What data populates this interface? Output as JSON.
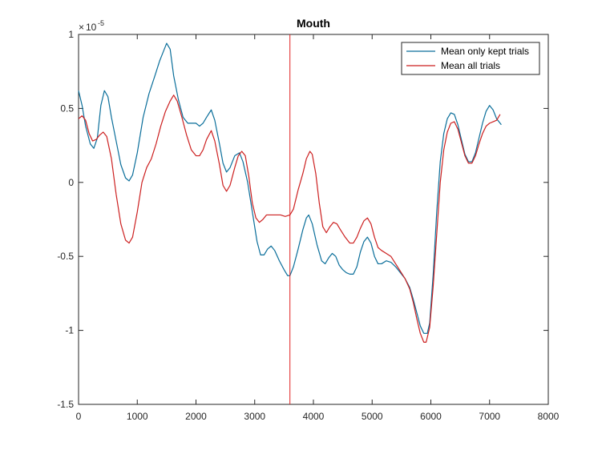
{
  "chart_data": {
    "type": "line",
    "title": "Mouth",
    "xlabel": "",
    "ylabel": "",
    "xlim": [
      0,
      8000
    ],
    "ylim": [
      -1.5,
      1
    ],
    "y_exponent_label": "10",
    "y_exponent_power": "-5",
    "y_scale_note": "values shown ×10^-5",
    "xticks": [
      0,
      1000,
      2000,
      3000,
      4000,
      5000,
      6000,
      7000,
      8000
    ],
    "xtick_labels": [
      "0",
      "1000",
      "2000",
      "3000",
      "4000",
      "5000",
      "6000",
      "7000",
      "8000"
    ],
    "yticks": [
      -1.5,
      -1,
      -0.5,
      0,
      0.5,
      1
    ],
    "ytick_labels": [
      "-1.5",
      "-1",
      "-0.5",
      "0",
      "0.5",
      "1"
    ],
    "grid": false,
    "legend_position": "top-right",
    "vertical_line": {
      "x": 3600,
      "color": "#e02020"
    },
    "series": [
      {
        "name": "Mean only kept trials",
        "color": "#0a6e9a",
        "points": [
          [
            0,
            0.62
          ],
          [
            60,
            0.52
          ],
          [
            120,
            0.38
          ],
          [
            200,
            0.26
          ],
          [
            260,
            0.23
          ],
          [
            320,
            0.3
          ],
          [
            380,
            0.52
          ],
          [
            440,
            0.62
          ],
          [
            500,
            0.58
          ],
          [
            560,
            0.44
          ],
          [
            640,
            0.28
          ],
          [
            720,
            0.12
          ],
          [
            800,
            0.03
          ],
          [
            860,
            0.01
          ],
          [
            920,
            0.05
          ],
          [
            1000,
            0.2
          ],
          [
            1100,
            0.44
          ],
          [
            1200,
            0.6
          ],
          [
            1300,
            0.72
          ],
          [
            1380,
            0.82
          ],
          [
            1440,
            0.88
          ],
          [
            1500,
            0.94
          ],
          [
            1560,
            0.9
          ],
          [
            1620,
            0.72
          ],
          [
            1700,
            0.56
          ],
          [
            1780,
            0.44
          ],
          [
            1860,
            0.4
          ],
          [
            1940,
            0.4
          ],
          [
            2000,
            0.4
          ],
          [
            2060,
            0.38
          ],
          [
            2120,
            0.4
          ],
          [
            2180,
            0.44
          ],
          [
            2260,
            0.49
          ],
          [
            2320,
            0.42
          ],
          [
            2400,
            0.26
          ],
          [
            2460,
            0.13
          ],
          [
            2520,
            0.07
          ],
          [
            2580,
            0.1
          ],
          [
            2660,
            0.18
          ],
          [
            2740,
            0.2
          ],
          [
            2800,
            0.14
          ],
          [
            2880,
            0.0
          ],
          [
            2960,
            -0.2
          ],
          [
            3040,
            -0.4
          ],
          [
            3100,
            -0.49
          ],
          [
            3160,
            -0.49
          ],
          [
            3220,
            -0.45
          ],
          [
            3280,
            -0.43
          ],
          [
            3340,
            -0.46
          ],
          [
            3420,
            -0.53
          ],
          [
            3500,
            -0.59
          ],
          [
            3560,
            -0.63
          ],
          [
            3600,
            -0.63
          ],
          [
            3660,
            -0.57
          ],
          [
            3740,
            -0.45
          ],
          [
            3820,
            -0.32
          ],
          [
            3880,
            -0.24
          ],
          [
            3920,
            -0.22
          ],
          [
            3980,
            -0.28
          ],
          [
            4060,
            -0.42
          ],
          [
            4140,
            -0.53
          ],
          [
            4200,
            -0.55
          ],
          [
            4260,
            -0.51
          ],
          [
            4320,
            -0.48
          ],
          [
            4380,
            -0.5
          ],
          [
            4440,
            -0.56
          ],
          [
            4500,
            -0.59
          ],
          [
            4560,
            -0.61
          ],
          [
            4620,
            -0.62
          ],
          [
            4680,
            -0.62
          ],
          [
            4740,
            -0.57
          ],
          [
            4800,
            -0.47
          ],
          [
            4860,
            -0.4
          ],
          [
            4920,
            -0.37
          ],
          [
            4980,
            -0.41
          ],
          [
            5040,
            -0.5
          ],
          [
            5100,
            -0.55
          ],
          [
            5160,
            -0.55
          ],
          [
            5240,
            -0.53
          ],
          [
            5320,
            -0.54
          ],
          [
            5400,
            -0.57
          ],
          [
            5480,
            -0.61
          ],
          [
            5560,
            -0.65
          ],
          [
            5640,
            -0.71
          ],
          [
            5700,
            -0.79
          ],
          [
            5760,
            -0.88
          ],
          [
            5820,
            -0.97
          ],
          [
            5880,
            -1.02
          ],
          [
            5940,
            -1.02
          ],
          [
            5980,
            -0.95
          ],
          [
            6040,
            -0.62
          ],
          [
            6100,
            -0.2
          ],
          [
            6160,
            0.14
          ],
          [
            6220,
            0.33
          ],
          [
            6280,
            0.43
          ],
          [
            6340,
            0.47
          ],
          [
            6400,
            0.46
          ],
          [
            6460,
            0.39
          ],
          [
            6520,
            0.29
          ],
          [
            6580,
            0.19
          ],
          [
            6640,
            0.14
          ],
          [
            6700,
            0.14
          ],
          [
            6760,
            0.2
          ],
          [
            6820,
            0.3
          ],
          [
            6880,
            0.4
          ],
          [
            6940,
            0.48
          ],
          [
            7000,
            0.52
          ],
          [
            7060,
            0.49
          ],
          [
            7120,
            0.43
          ],
          [
            7180,
            0.4
          ],
          [
            7200,
            0.39
          ]
        ]
      },
      {
        "name": "Mean all trials",
        "color": "#cc1f1f",
        "points": [
          [
            0,
            0.43
          ],
          [
            60,
            0.45
          ],
          [
            120,
            0.42
          ],
          [
            180,
            0.33
          ],
          [
            240,
            0.28
          ],
          [
            300,
            0.29
          ],
          [
            360,
            0.32
          ],
          [
            420,
            0.34
          ],
          [
            480,
            0.31
          ],
          [
            560,
            0.16
          ],
          [
            640,
            -0.08
          ],
          [
            720,
            -0.28
          ],
          [
            800,
            -0.39
          ],
          [
            860,
            -0.41
          ],
          [
            920,
            -0.37
          ],
          [
            1000,
            -0.2
          ],
          [
            1080,
            0.0
          ],
          [
            1160,
            0.1
          ],
          [
            1240,
            0.16
          ],
          [
            1320,
            0.26
          ],
          [
            1400,
            0.38
          ],
          [
            1480,
            0.48
          ],
          [
            1560,
            0.55
          ],
          [
            1620,
            0.59
          ],
          [
            1680,
            0.55
          ],
          [
            1760,
            0.44
          ],
          [
            1840,
            0.32
          ],
          [
            1920,
            0.22
          ],
          [
            2000,
            0.18
          ],
          [
            2060,
            0.18
          ],
          [
            2120,
            0.22
          ],
          [
            2180,
            0.29
          ],
          [
            2260,
            0.35
          ],
          [
            2320,
            0.28
          ],
          [
            2400,
            0.12
          ],
          [
            2460,
            -0.02
          ],
          [
            2520,
            -0.06
          ],
          [
            2580,
            -0.02
          ],
          [
            2660,
            0.1
          ],
          [
            2720,
            0.18
          ],
          [
            2780,
            0.21
          ],
          [
            2840,
            0.18
          ],
          [
            2900,
            0.04
          ],
          [
            2960,
            -0.14
          ],
          [
            3020,
            -0.24
          ],
          [
            3080,
            -0.27
          ],
          [
            3140,
            -0.25
          ],
          [
            3200,
            -0.22
          ],
          [
            3280,
            -0.22
          ],
          [
            3360,
            -0.22
          ],
          [
            3440,
            -0.22
          ],
          [
            3520,
            -0.23
          ],
          [
            3600,
            -0.22
          ],
          [
            3660,
            -0.18
          ],
          [
            3740,
            -0.05
          ],
          [
            3820,
            0.06
          ],
          [
            3880,
            0.16
          ],
          [
            3940,
            0.21
          ],
          [
            3980,
            0.19
          ],
          [
            4040,
            0.06
          ],
          [
            4100,
            -0.14
          ],
          [
            4160,
            -0.3
          ],
          [
            4220,
            -0.34
          ],
          [
            4280,
            -0.3
          ],
          [
            4340,
            -0.27
          ],
          [
            4400,
            -0.28
          ],
          [
            4460,
            -0.32
          ],
          [
            4540,
            -0.37
          ],
          [
            4620,
            -0.41
          ],
          [
            4680,
            -0.41
          ],
          [
            4740,
            -0.37
          ],
          [
            4800,
            -0.31
          ],
          [
            4860,
            -0.26
          ],
          [
            4920,
            -0.24
          ],
          [
            4980,
            -0.28
          ],
          [
            5040,
            -0.37
          ],
          [
            5100,
            -0.44
          ],
          [
            5160,
            -0.46
          ],
          [
            5240,
            -0.48
          ],
          [
            5320,
            -0.5
          ],
          [
            5400,
            -0.55
          ],
          [
            5480,
            -0.6
          ],
          [
            5560,
            -0.65
          ],
          [
            5640,
            -0.72
          ],
          [
            5700,
            -0.81
          ],
          [
            5760,
            -0.92
          ],
          [
            5820,
            -1.02
          ],
          [
            5880,
            -1.08
          ],
          [
            5920,
            -1.08
          ],
          [
            5980,
            -0.98
          ],
          [
            6040,
            -0.7
          ],
          [
            6100,
            -0.35
          ],
          [
            6160,
            0.0
          ],
          [
            6220,
            0.22
          ],
          [
            6280,
            0.34
          ],
          [
            6340,
            0.4
          ],
          [
            6400,
            0.41
          ],
          [
            6460,
            0.36
          ],
          [
            6520,
            0.27
          ],
          [
            6580,
            0.18
          ],
          [
            6640,
            0.13
          ],
          [
            6700,
            0.13
          ],
          [
            6760,
            0.18
          ],
          [
            6820,
            0.26
          ],
          [
            6880,
            0.33
          ],
          [
            6940,
            0.38
          ],
          [
            7000,
            0.4
          ],
          [
            7060,
            0.41
          ],
          [
            7120,
            0.42
          ],
          [
            7180,
            0.46
          ]
        ]
      }
    ]
  }
}
